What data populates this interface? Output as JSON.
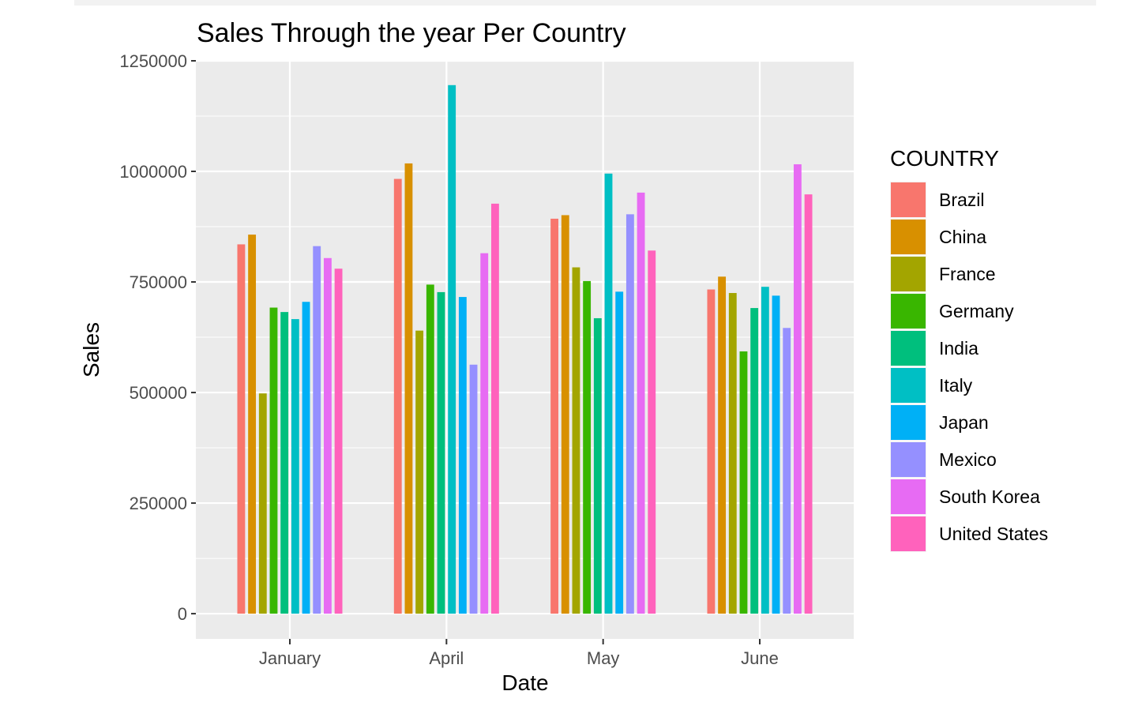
{
  "chart_data": {
    "type": "bar",
    "title": "Sales Through the year Per Country",
    "xlabel": "Date",
    "ylabel": "Sales",
    "ylim": [
      -57000,
      1250000
    ],
    "yticks": [
      0,
      250000,
      500000,
      750000,
      1000000,
      1250000
    ],
    "ytick_labels": [
      "0",
      "250000",
      "500000",
      "750000",
      "1000000",
      "1250000"
    ],
    "categories": [
      "January",
      "April",
      "May",
      "June"
    ],
    "grid": true,
    "legend": {
      "title": "COUNTRY",
      "position": "right"
    },
    "series": [
      {
        "name": "Brazil",
        "color": "#F8766D",
        "values": [
          835000,
          983000,
          893000,
          733000
        ]
      },
      {
        "name": "China",
        "color": "#D89000",
        "values": [
          857000,
          1018000,
          901000,
          762000
        ]
      },
      {
        "name": "France",
        "color": "#A3A500",
        "values": [
          498000,
          640000,
          783000,
          725000
        ]
      },
      {
        "name": "Germany",
        "color": "#39B600",
        "values": [
          692000,
          744000,
          752000,
          593000
        ]
      },
      {
        "name": "India",
        "color": "#00BF7D",
        "values": [
          682000,
          727000,
          668000,
          691000
        ]
      },
      {
        "name": "Italy",
        "color": "#00BFC4",
        "values": [
          666000,
          1195000,
          995000,
          739000
        ]
      },
      {
        "name": "Japan",
        "color": "#00B0F6",
        "values": [
          705000,
          716000,
          728000,
          719000
        ]
      },
      {
        "name": "Mexico",
        "color": "#9590FF",
        "values": [
          831000,
          563000,
          903000,
          646000
        ]
      },
      {
        "name": "South Korea",
        "color": "#E76BF3",
        "values": [
          804000,
          815000,
          952000,
          1016000
        ]
      },
      {
        "name": "United States",
        "color": "#FF62BC",
        "values": [
          780000,
          927000,
          821000,
          948000
        ]
      }
    ]
  }
}
